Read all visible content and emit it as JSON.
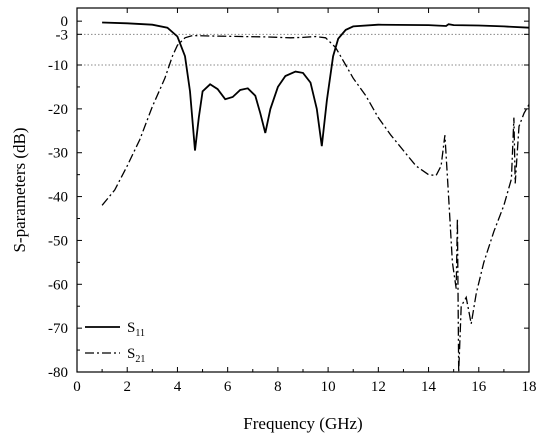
{
  "chart_data": {
    "type": "line",
    "xlabel": "Frequency (GHz)",
    "ylabel": "S-parameters (dB)",
    "xlim": [
      0,
      18
    ],
    "ylim": [
      -80,
      3
    ],
    "x_ticks": [
      "0",
      "2",
      "4",
      "6",
      "8",
      "10",
      "12",
      "14",
      "16",
      "18"
    ],
    "y_ticks": [
      "0",
      "-3",
      "-10",
      "-20",
      "-30",
      "-40",
      "-50",
      "-60",
      "-70",
      "-80"
    ],
    "y_tick_values": [
      0,
      -3,
      -10,
      -20,
      -30,
      -40,
      -50,
      -60,
      -70,
      -80
    ],
    "reference_lines": [
      -3,
      -10
    ],
    "legend_position": "bottom-left",
    "series": [
      {
        "name": "S",
        "name_subscript": "11",
        "style": "solid",
        "color": "#000000",
        "points": [
          [
            1.0,
            -0.3
          ],
          [
            2.0,
            -0.5
          ],
          [
            3.0,
            -0.8
          ],
          [
            3.6,
            -1.5
          ],
          [
            4.0,
            -3.5
          ],
          [
            4.3,
            -8
          ],
          [
            4.5,
            -16
          ],
          [
            4.7,
            -29.5
          ],
          [
            4.85,
            -22
          ],
          [
            5.0,
            -16
          ],
          [
            5.3,
            -14.4
          ],
          [
            5.6,
            -15.5
          ],
          [
            5.9,
            -17.8
          ],
          [
            6.2,
            -17.3
          ],
          [
            6.5,
            -15.7
          ],
          [
            6.8,
            -15.3
          ],
          [
            7.1,
            -17
          ],
          [
            7.3,
            -21
          ],
          [
            7.5,
            -25.5
          ],
          [
            7.7,
            -20
          ],
          [
            8.0,
            -15
          ],
          [
            8.3,
            -12.5
          ],
          [
            8.7,
            -11.5
          ],
          [
            9.0,
            -11.8
          ],
          [
            9.3,
            -14
          ],
          [
            9.55,
            -20
          ],
          [
            9.75,
            -28.5
          ],
          [
            9.95,
            -18
          ],
          [
            10.2,
            -8
          ],
          [
            10.4,
            -4
          ],
          [
            10.7,
            -2
          ],
          [
            11.0,
            -1.2
          ],
          [
            12.0,
            -0.8
          ],
          [
            14.0,
            -0.9
          ],
          [
            14.7,
            -1.1
          ],
          [
            14.8,
            -0.7
          ],
          [
            15.0,
            -0.9
          ],
          [
            16.0,
            -1.0
          ],
          [
            17.0,
            -1.2
          ],
          [
            18.0,
            -1.5
          ]
        ]
      },
      {
        "name": "S",
        "name_subscript": "21",
        "style": "dashdot",
        "color": "#000000",
        "points": [
          [
            1.0,
            -42
          ],
          [
            1.5,
            -38.5
          ],
          [
            2.0,
            -33
          ],
          [
            2.5,
            -27
          ],
          [
            3.0,
            -19.5
          ],
          [
            3.5,
            -13
          ],
          [
            3.8,
            -8
          ],
          [
            4.0,
            -5.5
          ],
          [
            4.3,
            -3.8
          ],
          [
            4.6,
            -3.3
          ],
          [
            5.5,
            -3.4
          ],
          [
            6.5,
            -3.5
          ],
          [
            7.5,
            -3.6
          ],
          [
            8.5,
            -3.8
          ],
          [
            9.0,
            -3.7
          ],
          [
            9.5,
            -3.5
          ],
          [
            9.9,
            -3.8
          ],
          [
            10.3,
            -6
          ],
          [
            10.7,
            -10
          ],
          [
            11.0,
            -13
          ],
          [
            11.5,
            -17
          ],
          [
            12.0,
            -22
          ],
          [
            12.5,
            -26
          ],
          [
            13.0,
            -29.5
          ],
          [
            13.5,
            -33
          ],
          [
            14.0,
            -35
          ],
          [
            14.3,
            -35.2
          ],
          [
            14.5,
            -33
          ],
          [
            14.65,
            -26
          ],
          [
            14.8,
            -40
          ],
          [
            14.95,
            -55
          ],
          [
            15.1,
            -61
          ],
          [
            15.15,
            -45
          ],
          [
            15.2,
            -80
          ],
          [
            15.3,
            -65
          ],
          [
            15.5,
            -63
          ],
          [
            15.7,
            -69
          ],
          [
            15.9,
            -62
          ],
          [
            16.2,
            -55
          ],
          [
            16.6,
            -48
          ],
          [
            17.0,
            -42
          ],
          [
            17.3,
            -36
          ],
          [
            17.4,
            -22
          ],
          [
            17.45,
            -37
          ],
          [
            17.6,
            -24
          ],
          [
            17.8,
            -21
          ],
          [
            18.0,
            -19
          ]
        ]
      }
    ]
  }
}
